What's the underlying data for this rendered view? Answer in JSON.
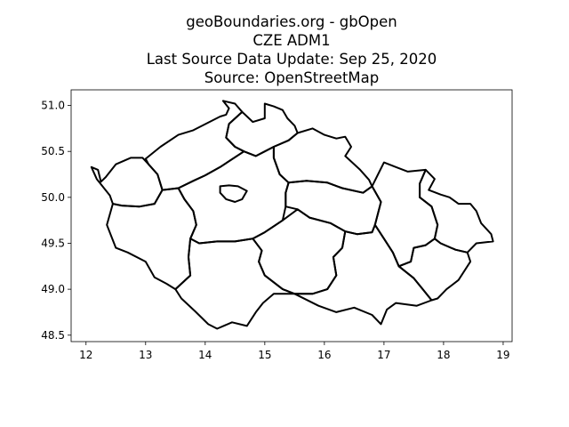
{
  "title_lines": [
    "geoBoundaries.org - gbOpen",
    "CZE ADM1",
    "Last Source Data Update: Sep 25, 2020",
    "Source: OpenStreetMap"
  ],
  "map_data": {
    "type": "map",
    "xlim": [
      11.75,
      19.15
    ],
    "ylim": [
      48.43,
      51.17
    ],
    "x_ticks": [
      12,
      13,
      14,
      15,
      16,
      17,
      18,
      19
    ],
    "x_tick_labels": [
      "12",
      "13",
      "14",
      "15",
      "16",
      "17",
      "18",
      "19"
    ],
    "y_ticks": [
      48.5,
      49.0,
      49.5,
      50.0,
      50.5,
      51.0
    ],
    "y_tick_labels": [
      "48.5",
      "49.0",
      "49.5",
      "50.0",
      "50.5",
      "51.0"
    ],
    "outline_color": "#000000",
    "regions": [
      {
        "id": "karlovarsky",
        "points": [
          [
            12.09,
            50.33
          ],
          [
            12.2,
            50.3
          ],
          [
            12.25,
            50.17
          ],
          [
            12.33,
            50.22
          ],
          [
            12.5,
            50.36
          ],
          [
            12.75,
            50.43
          ],
          [
            12.95,
            50.43
          ],
          [
            13.05,
            50.36
          ],
          [
            13.2,
            50.25
          ],
          [
            13.28,
            50.08
          ],
          [
            13.15,
            49.93
          ],
          [
            12.9,
            49.9
          ],
          [
            12.6,
            49.91
          ],
          [
            12.45,
            49.93
          ],
          [
            12.4,
            50.02
          ],
          [
            12.18,
            50.2
          ],
          [
            12.09,
            50.33
          ]
        ]
      },
      {
        "id": "ustecky",
        "points": [
          [
            13.05,
            50.36
          ],
          [
            13.0,
            50.42
          ],
          [
            13.25,
            50.55
          ],
          [
            13.55,
            50.68
          ],
          [
            13.8,
            50.73
          ],
          [
            14.25,
            50.88
          ],
          [
            14.35,
            50.9
          ],
          [
            14.4,
            50.97
          ],
          [
            14.3,
            51.05
          ],
          [
            14.5,
            51.02
          ],
          [
            14.62,
            50.93
          ],
          [
            14.4,
            50.8
          ],
          [
            14.35,
            50.65
          ],
          [
            14.5,
            50.55
          ],
          [
            14.65,
            50.5
          ],
          [
            14.25,
            50.33
          ],
          [
            14.0,
            50.24
          ],
          [
            13.8,
            50.18
          ],
          [
            13.55,
            50.1
          ],
          [
            13.28,
            50.08
          ],
          [
            13.2,
            50.25
          ],
          [
            13.05,
            50.36
          ]
        ]
      },
      {
        "id": "liberecky",
        "points": [
          [
            14.62,
            50.93
          ],
          [
            14.8,
            50.82
          ],
          [
            15.0,
            50.86
          ],
          [
            15.0,
            51.02
          ],
          [
            15.15,
            50.99
          ],
          [
            15.3,
            50.95
          ],
          [
            15.38,
            50.86
          ],
          [
            15.5,
            50.78
          ],
          [
            15.55,
            50.7
          ],
          [
            15.4,
            50.62
          ],
          [
            15.15,
            50.55
          ],
          [
            15.0,
            50.5
          ],
          [
            14.85,
            50.45
          ],
          [
            14.65,
            50.5
          ],
          [
            14.5,
            50.55
          ],
          [
            14.35,
            50.65
          ],
          [
            14.4,
            50.8
          ],
          [
            14.62,
            50.93
          ]
        ]
      },
      {
        "id": "kralovehradecky",
        "points": [
          [
            15.55,
            50.7
          ],
          [
            15.8,
            50.75
          ],
          [
            16.0,
            50.68
          ],
          [
            16.2,
            50.64
          ],
          [
            16.35,
            50.66
          ],
          [
            16.45,
            50.55
          ],
          [
            16.35,
            50.45
          ],
          [
            16.6,
            50.3
          ],
          [
            16.75,
            50.19
          ],
          [
            16.8,
            50.12
          ],
          [
            16.65,
            50.05
          ],
          [
            16.3,
            50.1
          ],
          [
            16.05,
            50.16
          ],
          [
            15.7,
            50.18
          ],
          [
            15.4,
            50.16
          ],
          [
            15.25,
            50.25
          ],
          [
            15.15,
            50.43
          ],
          [
            15.15,
            50.55
          ],
          [
            15.4,
            50.62
          ],
          [
            15.55,
            50.7
          ]
        ]
      },
      {
        "id": "pardubicky",
        "points": [
          [
            15.4,
            50.16
          ],
          [
            15.7,
            50.18
          ],
          [
            16.05,
            50.16
          ],
          [
            16.3,
            50.1
          ],
          [
            16.65,
            50.05
          ],
          [
            16.8,
            50.12
          ],
          [
            16.95,
            49.95
          ],
          [
            16.85,
            49.7
          ],
          [
            16.8,
            49.62
          ],
          [
            16.55,
            49.6
          ],
          [
            16.35,
            49.63
          ],
          [
            16.1,
            49.72
          ],
          [
            15.75,
            49.78
          ],
          [
            15.55,
            49.87
          ],
          [
            15.35,
            49.9
          ],
          [
            15.35,
            50.05
          ],
          [
            15.4,
            50.16
          ]
        ]
      },
      {
        "id": "praha",
        "points": [
          [
            14.25,
            50.12
          ],
          [
            14.4,
            50.13
          ],
          [
            14.55,
            50.12
          ],
          [
            14.7,
            50.07
          ],
          [
            14.62,
            49.98
          ],
          [
            14.5,
            49.95
          ],
          [
            14.35,
            49.98
          ],
          [
            14.25,
            50.05
          ],
          [
            14.25,
            50.12
          ]
        ]
      },
      {
        "id": "stredocesky",
        "points": [
          [
            13.55,
            50.1
          ],
          [
            13.8,
            50.18
          ],
          [
            14.0,
            50.24
          ],
          [
            14.25,
            50.33
          ],
          [
            14.65,
            50.5
          ],
          [
            14.85,
            50.45
          ],
          [
            15.0,
            50.5
          ],
          [
            15.15,
            50.55
          ],
          [
            15.15,
            50.43
          ],
          [
            15.25,
            50.25
          ],
          [
            15.4,
            50.16
          ],
          [
            15.35,
            50.05
          ],
          [
            15.35,
            49.9
          ],
          [
            15.3,
            49.75
          ],
          [
            15.0,
            49.62
          ],
          [
            14.8,
            49.55
          ],
          [
            14.5,
            49.52
          ],
          [
            14.2,
            49.52
          ],
          [
            13.9,
            49.5
          ],
          [
            13.75,
            49.55
          ],
          [
            13.85,
            49.7
          ],
          [
            13.8,
            49.85
          ],
          [
            13.65,
            49.98
          ],
          [
            13.55,
            50.1
          ]
        ]
      },
      {
        "id": "plzensky",
        "points": [
          [
            12.45,
            49.93
          ],
          [
            12.6,
            49.91
          ],
          [
            12.9,
            49.9
          ],
          [
            13.15,
            49.93
          ],
          [
            13.28,
            50.08
          ],
          [
            13.55,
            50.1
          ],
          [
            13.65,
            49.98
          ],
          [
            13.8,
            49.85
          ],
          [
            13.85,
            49.7
          ],
          [
            13.75,
            49.55
          ],
          [
            13.72,
            49.35
          ],
          [
            13.75,
            49.15
          ],
          [
            13.5,
            49.0
          ],
          [
            13.35,
            49.06
          ],
          [
            13.15,
            49.13
          ],
          [
            13.0,
            49.3
          ],
          [
            12.7,
            49.4
          ],
          [
            12.5,
            49.45
          ],
          [
            12.35,
            49.7
          ],
          [
            12.45,
            49.93
          ]
        ]
      },
      {
        "id": "jihocesky",
        "points": [
          [
            13.75,
            49.15
          ],
          [
            13.72,
            49.35
          ],
          [
            13.75,
            49.55
          ],
          [
            13.9,
            49.5
          ],
          [
            14.2,
            49.52
          ],
          [
            14.5,
            49.52
          ],
          [
            14.8,
            49.55
          ],
          [
            14.95,
            49.42
          ],
          [
            14.9,
            49.3
          ],
          [
            15.0,
            49.15
          ],
          [
            15.3,
            49.0
          ],
          [
            15.5,
            48.95
          ],
          [
            15.35,
            48.95
          ],
          [
            15.15,
            48.95
          ],
          [
            14.97,
            48.85
          ],
          [
            14.85,
            48.75
          ],
          [
            14.7,
            48.6
          ],
          [
            14.45,
            48.64
          ],
          [
            14.2,
            48.57
          ],
          [
            14.05,
            48.62
          ],
          [
            13.83,
            48.76
          ],
          [
            13.6,
            48.9
          ],
          [
            13.5,
            49.0
          ],
          [
            13.75,
            49.15
          ]
        ]
      },
      {
        "id": "vysocina",
        "points": [
          [
            14.8,
            49.55
          ],
          [
            15.0,
            49.62
          ],
          [
            15.3,
            49.75
          ],
          [
            15.55,
            49.87
          ],
          [
            15.75,
            49.78
          ],
          [
            16.1,
            49.72
          ],
          [
            16.35,
            49.63
          ],
          [
            16.3,
            49.45
          ],
          [
            16.15,
            49.35
          ],
          [
            16.2,
            49.15
          ],
          [
            16.05,
            49.0
          ],
          [
            15.8,
            48.95
          ],
          [
            15.5,
            48.95
          ],
          [
            15.3,
            49.0
          ],
          [
            15.0,
            49.15
          ],
          [
            14.9,
            49.3
          ],
          [
            14.95,
            49.42
          ],
          [
            14.8,
            49.55
          ]
        ]
      },
      {
        "id": "jihomoravsky",
        "points": [
          [
            16.35,
            49.63
          ],
          [
            16.55,
            49.6
          ],
          [
            16.8,
            49.62
          ],
          [
            16.85,
            49.7
          ],
          [
            17.0,
            49.55
          ],
          [
            17.15,
            49.4
          ],
          [
            17.25,
            49.25
          ],
          [
            17.5,
            49.12
          ],
          [
            17.65,
            49.0
          ],
          [
            17.8,
            48.88
          ],
          [
            17.55,
            48.82
          ],
          [
            17.2,
            48.85
          ],
          [
            17.05,
            48.78
          ],
          [
            16.95,
            48.62
          ],
          [
            16.8,
            48.72
          ],
          [
            16.5,
            48.8
          ],
          [
            16.2,
            48.75
          ],
          [
            15.9,
            48.82
          ],
          [
            15.5,
            48.95
          ],
          [
            15.8,
            48.95
          ],
          [
            16.05,
            49.0
          ],
          [
            16.2,
            49.15
          ],
          [
            16.15,
            49.35
          ],
          [
            16.3,
            49.45
          ],
          [
            16.35,
            49.63
          ]
        ]
      },
      {
        "id": "olomoucky",
        "points": [
          [
            16.8,
            50.12
          ],
          [
            16.9,
            50.25
          ],
          [
            17.0,
            50.38
          ],
          [
            17.2,
            50.33
          ],
          [
            17.4,
            50.28
          ],
          [
            17.7,
            50.3
          ],
          [
            17.6,
            50.15
          ],
          [
            17.6,
            50.0
          ],
          [
            17.8,
            49.9
          ],
          [
            17.9,
            49.7
          ],
          [
            17.85,
            49.55
          ],
          [
            17.7,
            49.48
          ],
          [
            17.5,
            49.45
          ],
          [
            17.45,
            49.3
          ],
          [
            17.25,
            49.25
          ],
          [
            17.15,
            49.4
          ],
          [
            17.0,
            49.55
          ],
          [
            16.85,
            49.7
          ],
          [
            16.95,
            49.95
          ],
          [
            16.8,
            50.12
          ]
        ]
      },
      {
        "id": "moravskoslezsky",
        "points": [
          [
            17.7,
            50.3
          ],
          [
            17.85,
            50.2
          ],
          [
            17.75,
            50.08
          ],
          [
            17.95,
            50.03
          ],
          [
            18.1,
            50.0
          ],
          [
            18.25,
            49.93
          ],
          [
            18.45,
            49.93
          ],
          [
            18.55,
            49.85
          ],
          [
            18.63,
            49.72
          ],
          [
            18.8,
            49.6
          ],
          [
            18.83,
            49.52
          ],
          [
            18.55,
            49.5
          ],
          [
            18.4,
            49.4
          ],
          [
            18.2,
            49.43
          ],
          [
            17.95,
            49.5
          ],
          [
            17.85,
            49.55
          ],
          [
            17.9,
            49.7
          ],
          [
            17.8,
            49.9
          ],
          [
            17.6,
            50.0
          ],
          [
            17.6,
            50.15
          ],
          [
            17.7,
            50.3
          ]
        ]
      },
      {
        "id": "zlinsky",
        "points": [
          [
            17.25,
            49.25
          ],
          [
            17.45,
            49.3
          ],
          [
            17.5,
            49.45
          ],
          [
            17.7,
            49.48
          ],
          [
            17.85,
            49.55
          ],
          [
            17.95,
            49.5
          ],
          [
            18.2,
            49.43
          ],
          [
            18.4,
            49.4
          ],
          [
            18.45,
            49.3
          ],
          [
            18.25,
            49.1
          ],
          [
            18.05,
            49.0
          ],
          [
            17.9,
            48.9
          ],
          [
            17.8,
            48.88
          ],
          [
            17.65,
            49.0
          ],
          [
            17.5,
            49.12
          ],
          [
            17.25,
            49.25
          ]
        ]
      }
    ]
  }
}
